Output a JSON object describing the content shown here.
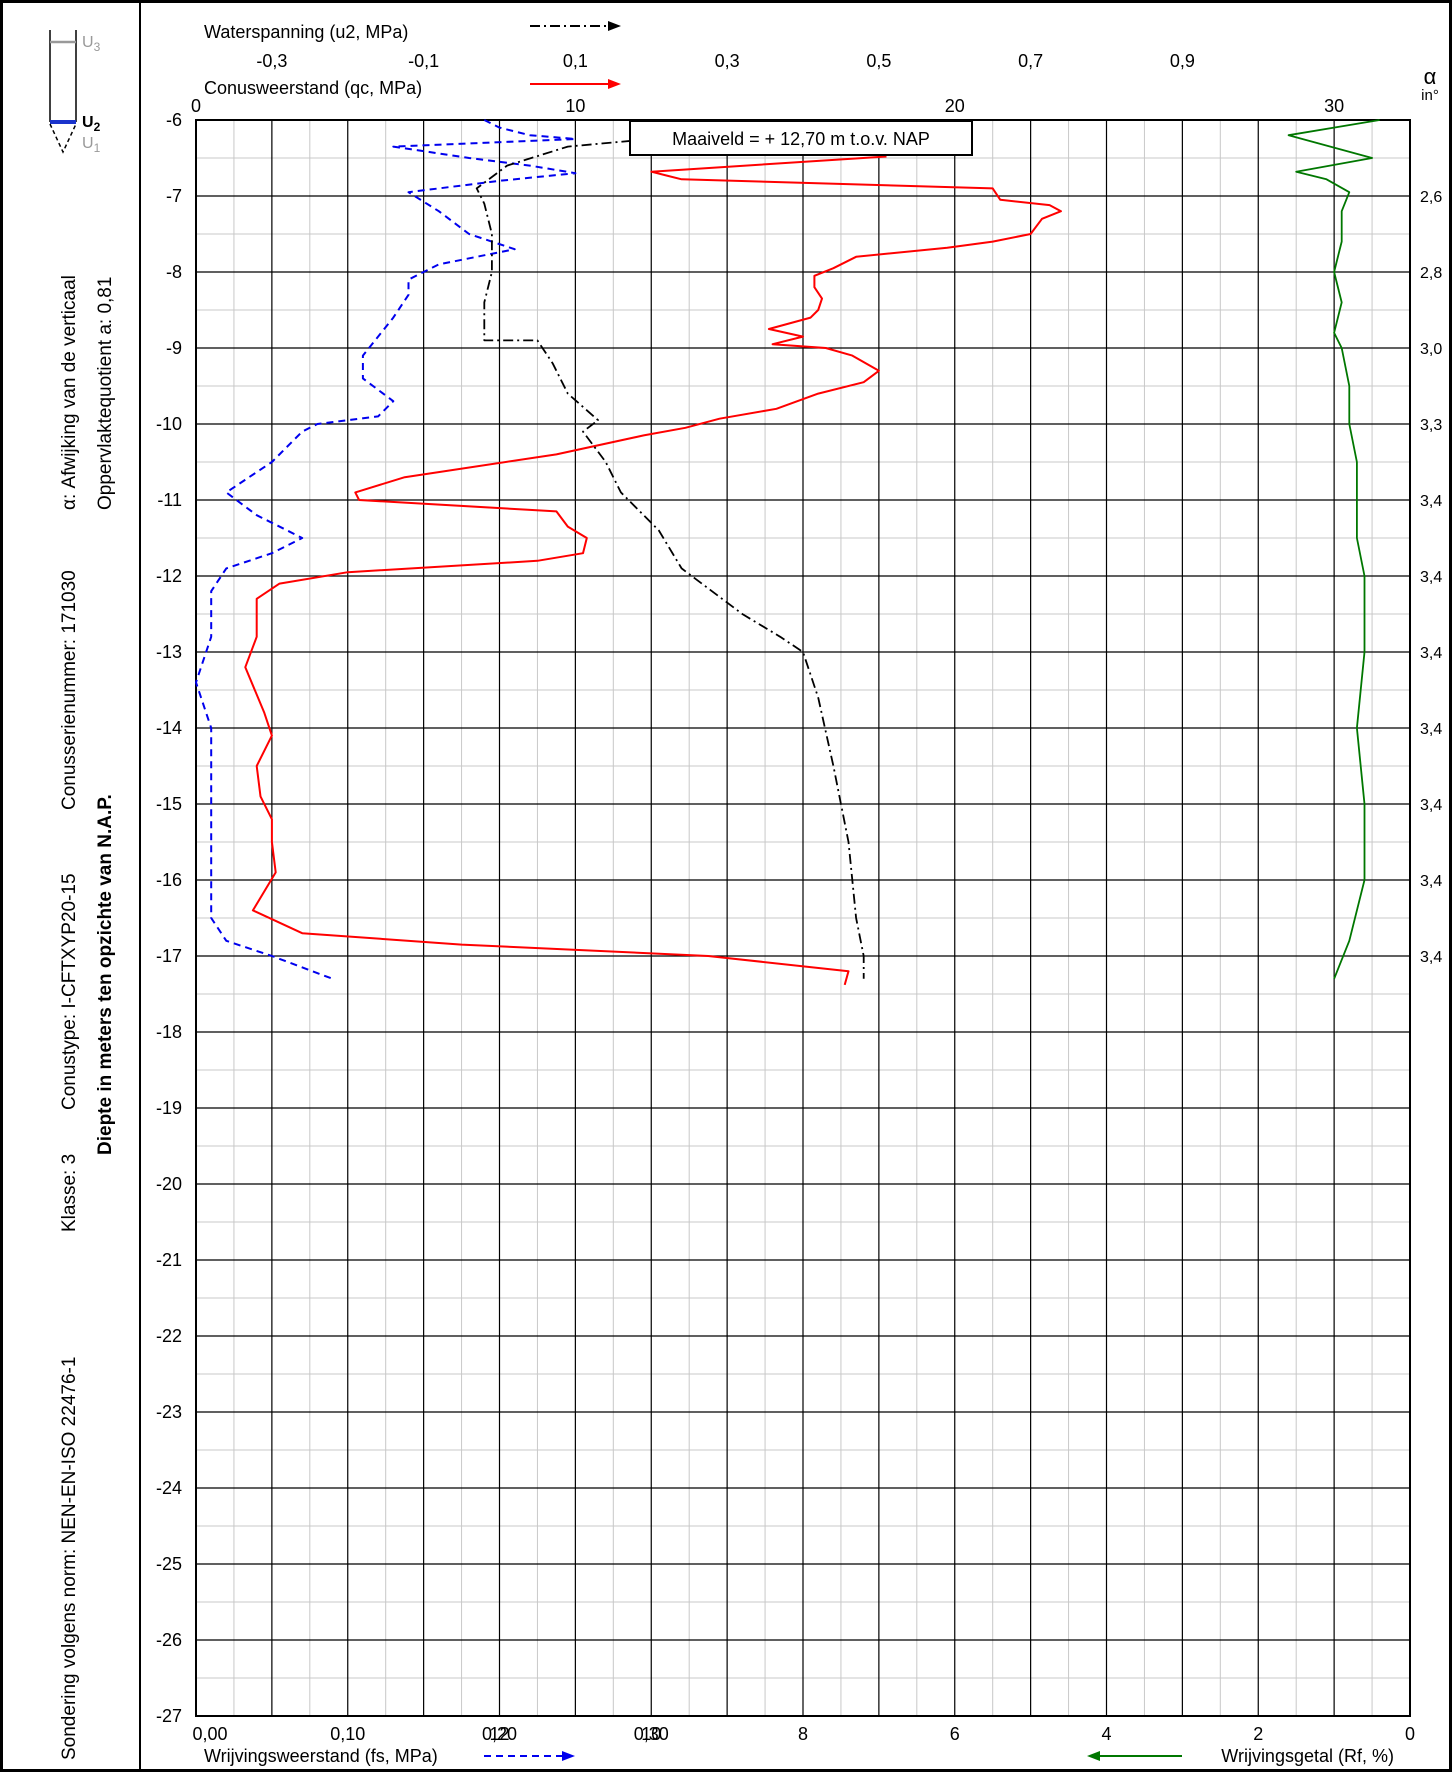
{
  "side_labels": {
    "norm": "Sondering volgens norm: NEN-EN-ISO 22476-1",
    "klasse": "Klasse: 3",
    "conustype": "Conustype: I-CFTXYP20-15",
    "conusserienummer": "Conusserienummer: 171030",
    "afwijking": "α: Afwijking van de verticaal",
    "oppervlakte": "Oppervlaktequotient a: 0,81",
    "diepte": "Diepte in meters ten opzichte van N.A.P."
  },
  "legend_probe": {
    "u3": "U3",
    "u2": "U2",
    "u1": "U1"
  },
  "alpha_header": {
    "symbol": "α",
    "unit": "in°"
  },
  "axis_titles": {
    "waterspanning": "Waterspanning (u2, MPa)",
    "conusweerstand": "Conusweerstand (qc, MPa)",
    "wrijvingsweerstand": "Wrijvingsweerstand (fs, MPa)",
    "wrijvingsgetal": "Wrijvingsgetal (Rf, %)"
  },
  "annotation": "Maaiveld = + 12,70 m t.o.v. NAP",
  "colors": {
    "qc": "#ff0000",
    "fs": "#0000ee",
    "u2": "#000000",
    "rf": "#007700"
  },
  "chart_data": {
    "type": "line",
    "ylim": [
      -27,
      -6
    ],
    "y_ticks": [
      "-6",
      "-7",
      "-8",
      "-9",
      "-10",
      "-11",
      "-12",
      "-13",
      "-14",
      "-15",
      "-16",
      "-17",
      "-18",
      "-19",
      "-20",
      "-21",
      "-22",
      "-23",
      "-24",
      "-25",
      "-26",
      "-27"
    ],
    "qc_axis": {
      "range": [
        0,
        32
      ],
      "ticks": [
        {
          "v": 0,
          "label": "0"
        },
        {
          "v": 10,
          "label": "10"
        },
        {
          "v": 20,
          "label": "20"
        },
        {
          "v": 30,
          "label": "30"
        }
      ]
    },
    "u2_axis": {
      "range": [
        -0.4,
        1.2
      ],
      "ticks": [
        {
          "v": -0.3,
          "label": "-0,3"
        },
        {
          "v": -0.1,
          "label": "-0,1"
        },
        {
          "v": 0.1,
          "label": "0,1"
        },
        {
          "v": 0.3,
          "label": "0,3"
        },
        {
          "v": 0.5,
          "label": "0,5"
        },
        {
          "v": 0.7,
          "label": "0,7"
        },
        {
          "v": 0.9,
          "label": "0,9"
        }
      ]
    },
    "fs_axis": {
      "range": [
        0,
        0.8
      ],
      "ticks": [
        {
          "v": 0,
          "label": "0,00"
        },
        {
          "v": 0.1,
          "label": "0,10"
        },
        {
          "v": 0.2,
          "label": "0,20"
        },
        {
          "v": 0.3,
          "label": "0,30"
        }
      ]
    },
    "rf_axis": {
      "range": [
        16,
        0
      ],
      "ticks": [
        {
          "v": 12,
          "label": "12"
        },
        {
          "v": 10,
          "label": "10"
        },
        {
          "v": 8,
          "label": "8"
        },
        {
          "v": 6,
          "label": "6"
        },
        {
          "v": 4,
          "label": "4"
        },
        {
          "v": 2,
          "label": "2"
        },
        {
          "v": 0,
          "label": "0"
        }
      ]
    },
    "alpha_labels": [
      {
        "depth": -7.0,
        "label": "2,6"
      },
      {
        "depth": -8.0,
        "label": "2,8"
      },
      {
        "depth": -9.0,
        "label": "3,0"
      },
      {
        "depth": -10.0,
        "label": "3,3"
      },
      {
        "depth": -11.0,
        "label": "3,4"
      },
      {
        "depth": -12.0,
        "label": "3,4"
      },
      {
        "depth": -13.0,
        "label": "3,4"
      },
      {
        "depth": -14.0,
        "label": "3,4"
      },
      {
        "depth": -15.0,
        "label": "3,4"
      },
      {
        "depth": -16.0,
        "label": "3,4"
      },
      {
        "depth": -17.0,
        "label": "3,4"
      }
    ],
    "series": [
      {
        "name": "Conusweerstand (qc, MPa)",
        "key": "qc",
        "points": [
          [
            18.2,
            -6.48
          ],
          [
            12.0,
            -6.68
          ],
          [
            12.4,
            -6.73
          ],
          [
            12.8,
            -6.78
          ],
          [
            21.0,
            -6.9
          ],
          [
            21.2,
            -7.05
          ],
          [
            22.5,
            -7.12
          ],
          [
            22.8,
            -7.2
          ],
          [
            22.3,
            -7.3
          ],
          [
            22.0,
            -7.5
          ],
          [
            21.0,
            -7.6
          ],
          [
            19.8,
            -7.68
          ],
          [
            17.4,
            -7.8
          ],
          [
            16.8,
            -7.95
          ],
          [
            16.3,
            -8.05
          ],
          [
            16.3,
            -8.2
          ],
          [
            16.5,
            -8.35
          ],
          [
            16.4,
            -8.5
          ],
          [
            16.2,
            -8.6
          ],
          [
            15.1,
            -8.75
          ],
          [
            16.0,
            -8.85
          ],
          [
            15.2,
            -8.95
          ],
          [
            16.6,
            -9.0
          ],
          [
            17.3,
            -9.1
          ],
          [
            18.0,
            -9.3
          ],
          [
            17.6,
            -9.45
          ],
          [
            16.4,
            -9.6
          ],
          [
            15.3,
            -9.8
          ],
          [
            13.8,
            -9.93
          ],
          [
            12.9,
            -10.05
          ],
          [
            11.8,
            -10.15
          ],
          [
            9.5,
            -10.4
          ],
          [
            5.5,
            -10.7
          ],
          [
            4.2,
            -10.9
          ],
          [
            4.3,
            -11.0
          ],
          [
            9.5,
            -11.15
          ],
          [
            9.8,
            -11.35
          ],
          [
            10.3,
            -11.5
          ],
          [
            10.2,
            -11.7
          ],
          [
            9.0,
            -11.8
          ],
          [
            4.0,
            -11.95
          ],
          [
            2.2,
            -12.1
          ],
          [
            1.6,
            -12.3
          ],
          [
            1.6,
            -12.8
          ],
          [
            1.3,
            -13.2
          ],
          [
            1.8,
            -13.8
          ],
          [
            2.0,
            -14.1
          ],
          [
            1.6,
            -14.5
          ],
          [
            1.7,
            -14.9
          ],
          [
            2.0,
            -15.2
          ],
          [
            2.0,
            -15.5
          ],
          [
            2.1,
            -15.9
          ],
          [
            1.5,
            -16.4
          ],
          [
            2.8,
            -16.7
          ],
          [
            7.0,
            -16.85
          ],
          [
            13.5,
            -17.0
          ],
          [
            17.2,
            -17.2
          ],
          [
            17.1,
            -17.38
          ]
        ]
      },
      {
        "name": "Wrijvingsweerstand (fs, MPa)",
        "key": "fs",
        "points": [
          [
            0.19,
            -6.0
          ],
          [
            0.2,
            -6.1
          ],
          [
            0.22,
            -6.2
          ],
          [
            0.25,
            -6.25
          ],
          [
            0.13,
            -6.35
          ],
          [
            0.18,
            -6.5
          ],
          [
            0.22,
            -6.6
          ],
          [
            0.25,
            -6.7
          ],
          [
            0.2,
            -6.8
          ],
          [
            0.14,
            -6.95
          ],
          [
            0.16,
            -7.2
          ],
          [
            0.18,
            -7.5
          ],
          [
            0.21,
            -7.7
          ],
          [
            0.16,
            -7.9
          ],
          [
            0.14,
            -8.1
          ],
          [
            0.14,
            -8.3
          ],
          [
            0.13,
            -8.6
          ],
          [
            0.12,
            -8.85
          ],
          [
            0.11,
            -9.1
          ],
          [
            0.11,
            -9.4
          ],
          [
            0.13,
            -9.7
          ],
          [
            0.12,
            -9.9
          ],
          [
            0.08,
            -10.0
          ],
          [
            0.07,
            -10.1
          ],
          [
            0.05,
            -10.5
          ],
          [
            0.02,
            -10.9
          ],
          [
            0.04,
            -11.2
          ],
          [
            0.06,
            -11.4
          ],
          [
            0.07,
            -11.5
          ],
          [
            0.05,
            -11.7
          ],
          [
            0.02,
            -11.9
          ],
          [
            0.01,
            -12.2
          ],
          [
            0.01,
            -12.8
          ],
          [
            0.0,
            -13.4
          ],
          [
            0.01,
            -14.0
          ],
          [
            0.01,
            -15.0
          ],
          [
            0.01,
            -16.0
          ],
          [
            0.01,
            -16.5
          ],
          [
            0.02,
            -16.8
          ],
          [
            0.05,
            -17.0
          ],
          [
            0.09,
            -17.3
          ]
        ]
      },
      {
        "name": "Waterspanning (u2, MPa)",
        "key": "u2",
        "points": [
          [
            0.2,
            -6.25
          ],
          [
            0.09,
            -6.35
          ],
          [
            0.01,
            -6.6
          ],
          [
            -0.03,
            -6.9
          ],
          [
            -0.02,
            -7.1
          ],
          [
            -0.01,
            -7.5
          ],
          [
            -0.01,
            -8.0
          ],
          [
            -0.02,
            -8.4
          ],
          [
            -0.02,
            -8.9
          ],
          [
            0.05,
            -8.9
          ],
          [
            0.07,
            -9.2
          ],
          [
            0.09,
            -9.6
          ],
          [
            0.13,
            -9.95
          ],
          [
            0.11,
            -10.1
          ],
          [
            0.14,
            -10.5
          ],
          [
            0.16,
            -10.9
          ],
          [
            0.21,
            -11.4
          ],
          [
            0.24,
            -11.9
          ],
          [
            0.32,
            -12.5
          ],
          [
            0.37,
            -12.8
          ],
          [
            0.4,
            -13.0
          ],
          [
            0.42,
            -13.6
          ],
          [
            0.44,
            -14.5
          ],
          [
            0.46,
            -15.5
          ],
          [
            0.47,
            -16.5
          ],
          [
            0.48,
            -17.0
          ],
          [
            0.48,
            -17.3
          ]
        ]
      },
      {
        "name": "Wrijvingsgetal (Rf, %)",
        "key": "rf",
        "points": [
          [
            0.4,
            -6.0
          ],
          [
            1.6,
            -6.2
          ],
          [
            0.5,
            -6.5
          ],
          [
            1.5,
            -6.68
          ],
          [
            1.1,
            -6.78
          ],
          [
            0.8,
            -6.95
          ],
          [
            0.9,
            -7.2
          ],
          [
            0.9,
            -7.6
          ],
          [
            1.0,
            -8.0
          ],
          [
            0.9,
            -8.4
          ],
          [
            1.0,
            -8.8
          ],
          [
            0.9,
            -9.0
          ],
          [
            0.8,
            -9.5
          ],
          [
            0.8,
            -10.0
          ],
          [
            0.7,
            -10.5
          ],
          [
            0.7,
            -11.0
          ],
          [
            0.7,
            -11.5
          ],
          [
            0.6,
            -12.0
          ],
          [
            0.6,
            -13.0
          ],
          [
            0.7,
            -14.0
          ],
          [
            0.6,
            -15.0
          ],
          [
            0.6,
            -16.0
          ],
          [
            0.8,
            -16.8
          ],
          [
            1.0,
            -17.3
          ]
        ]
      }
    ]
  }
}
